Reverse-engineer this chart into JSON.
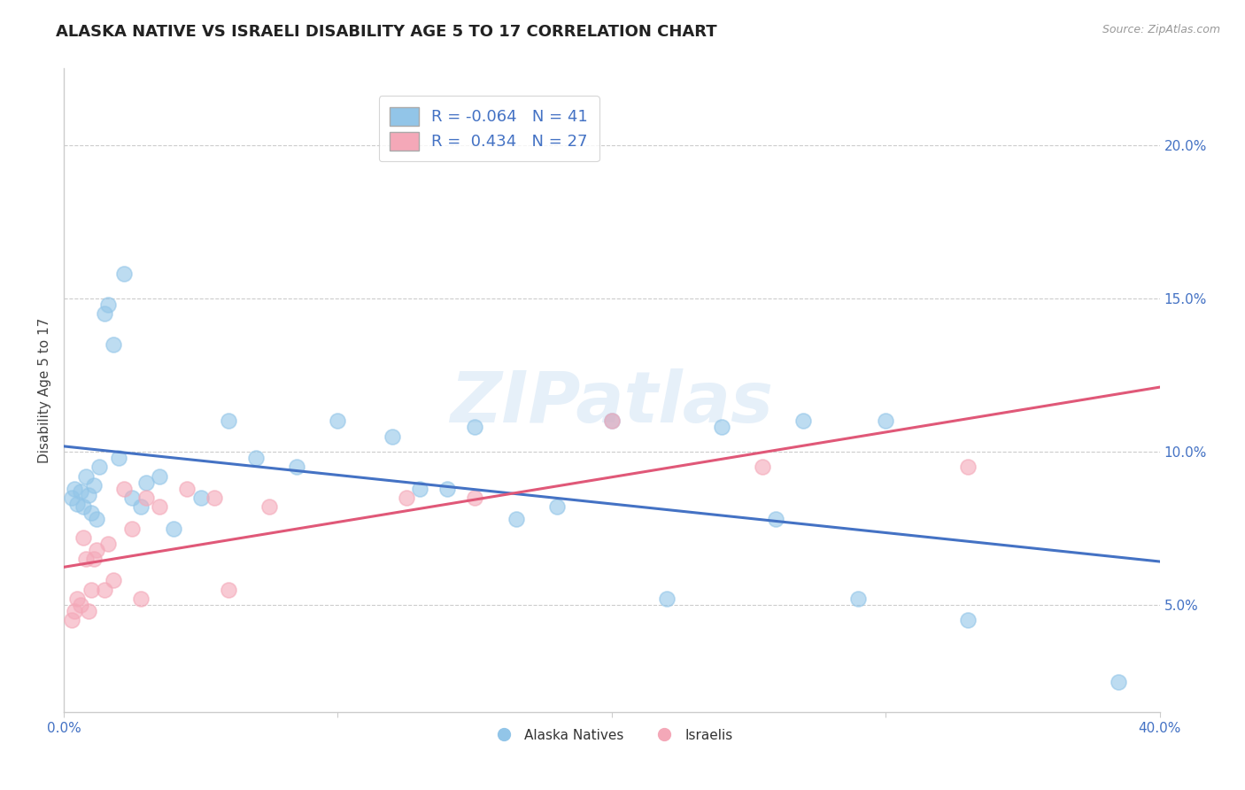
{
  "title": "ALASKA NATIVE VS ISRAELI DISABILITY AGE 5 TO 17 CORRELATION CHART",
  "source": "Source: ZipAtlas.com",
  "ylabel": "Disability Age 5 to 17",
  "ytick_labels": [
    "5.0%",
    "10.0%",
    "15.0%",
    "20.0%"
  ],
  "ytick_values": [
    5.0,
    10.0,
    15.0,
    20.0
  ],
  "xlim": [
    0.0,
    40.0
  ],
  "ylim": [
    1.5,
    22.5
  ],
  "alaska_color": "#92C5E8",
  "israeli_color": "#F4A8B8",
  "alaska_line_color": "#4472C4",
  "israeli_line_color": "#E05878",
  "watermark": "ZIPatlas",
  "alaska_points_x": [
    0.3,
    0.4,
    0.5,
    0.6,
    0.7,
    0.8,
    0.9,
    1.0,
    1.1,
    1.2,
    1.3,
    1.5,
    1.6,
    1.8,
    2.0,
    2.2,
    2.5,
    2.8,
    3.0,
    3.5,
    4.0,
    5.0,
    6.0,
    7.0,
    8.5,
    10.0,
    12.0,
    13.0,
    14.0,
    15.0,
    16.5,
    18.0,
    20.0,
    22.0,
    24.0,
    26.0,
    27.0,
    29.0,
    30.0,
    33.0,
    38.5
  ],
  "alaska_points_y": [
    8.5,
    8.8,
    8.3,
    8.7,
    8.2,
    9.2,
    8.6,
    8.0,
    8.9,
    7.8,
    9.5,
    14.5,
    14.8,
    13.5,
    9.8,
    15.8,
    8.5,
    8.2,
    9.0,
    9.2,
    7.5,
    8.5,
    11.0,
    9.8,
    9.5,
    11.0,
    10.5,
    8.8,
    8.8,
    10.8,
    7.8,
    8.2,
    11.0,
    5.2,
    10.8,
    7.8,
    11.0,
    5.2,
    11.0,
    4.5,
    2.5
  ],
  "israeli_points_x": [
    0.3,
    0.4,
    0.5,
    0.6,
    0.7,
    0.8,
    0.9,
    1.0,
    1.1,
    1.2,
    1.5,
    1.6,
    1.8,
    2.2,
    2.5,
    2.8,
    3.0,
    3.5,
    4.5,
    5.5,
    6.0,
    7.5,
    12.5,
    15.0,
    20.0,
    25.5,
    33.0
  ],
  "israeli_points_y": [
    4.5,
    4.8,
    5.2,
    5.0,
    7.2,
    6.5,
    4.8,
    5.5,
    6.5,
    6.8,
    5.5,
    7.0,
    5.8,
    8.8,
    7.5,
    5.2,
    8.5,
    8.2,
    8.8,
    8.5,
    5.5,
    8.2,
    8.5,
    8.5,
    11.0,
    9.5,
    9.5
  ],
  "alaska_R": -0.064,
  "alaska_N": 41,
  "israeli_R": 0.434,
  "israeli_N": 27,
  "grid_color": "#CCCCCC",
  "grid_linestyle": "--",
  "spine_color": "#CCCCCC"
}
